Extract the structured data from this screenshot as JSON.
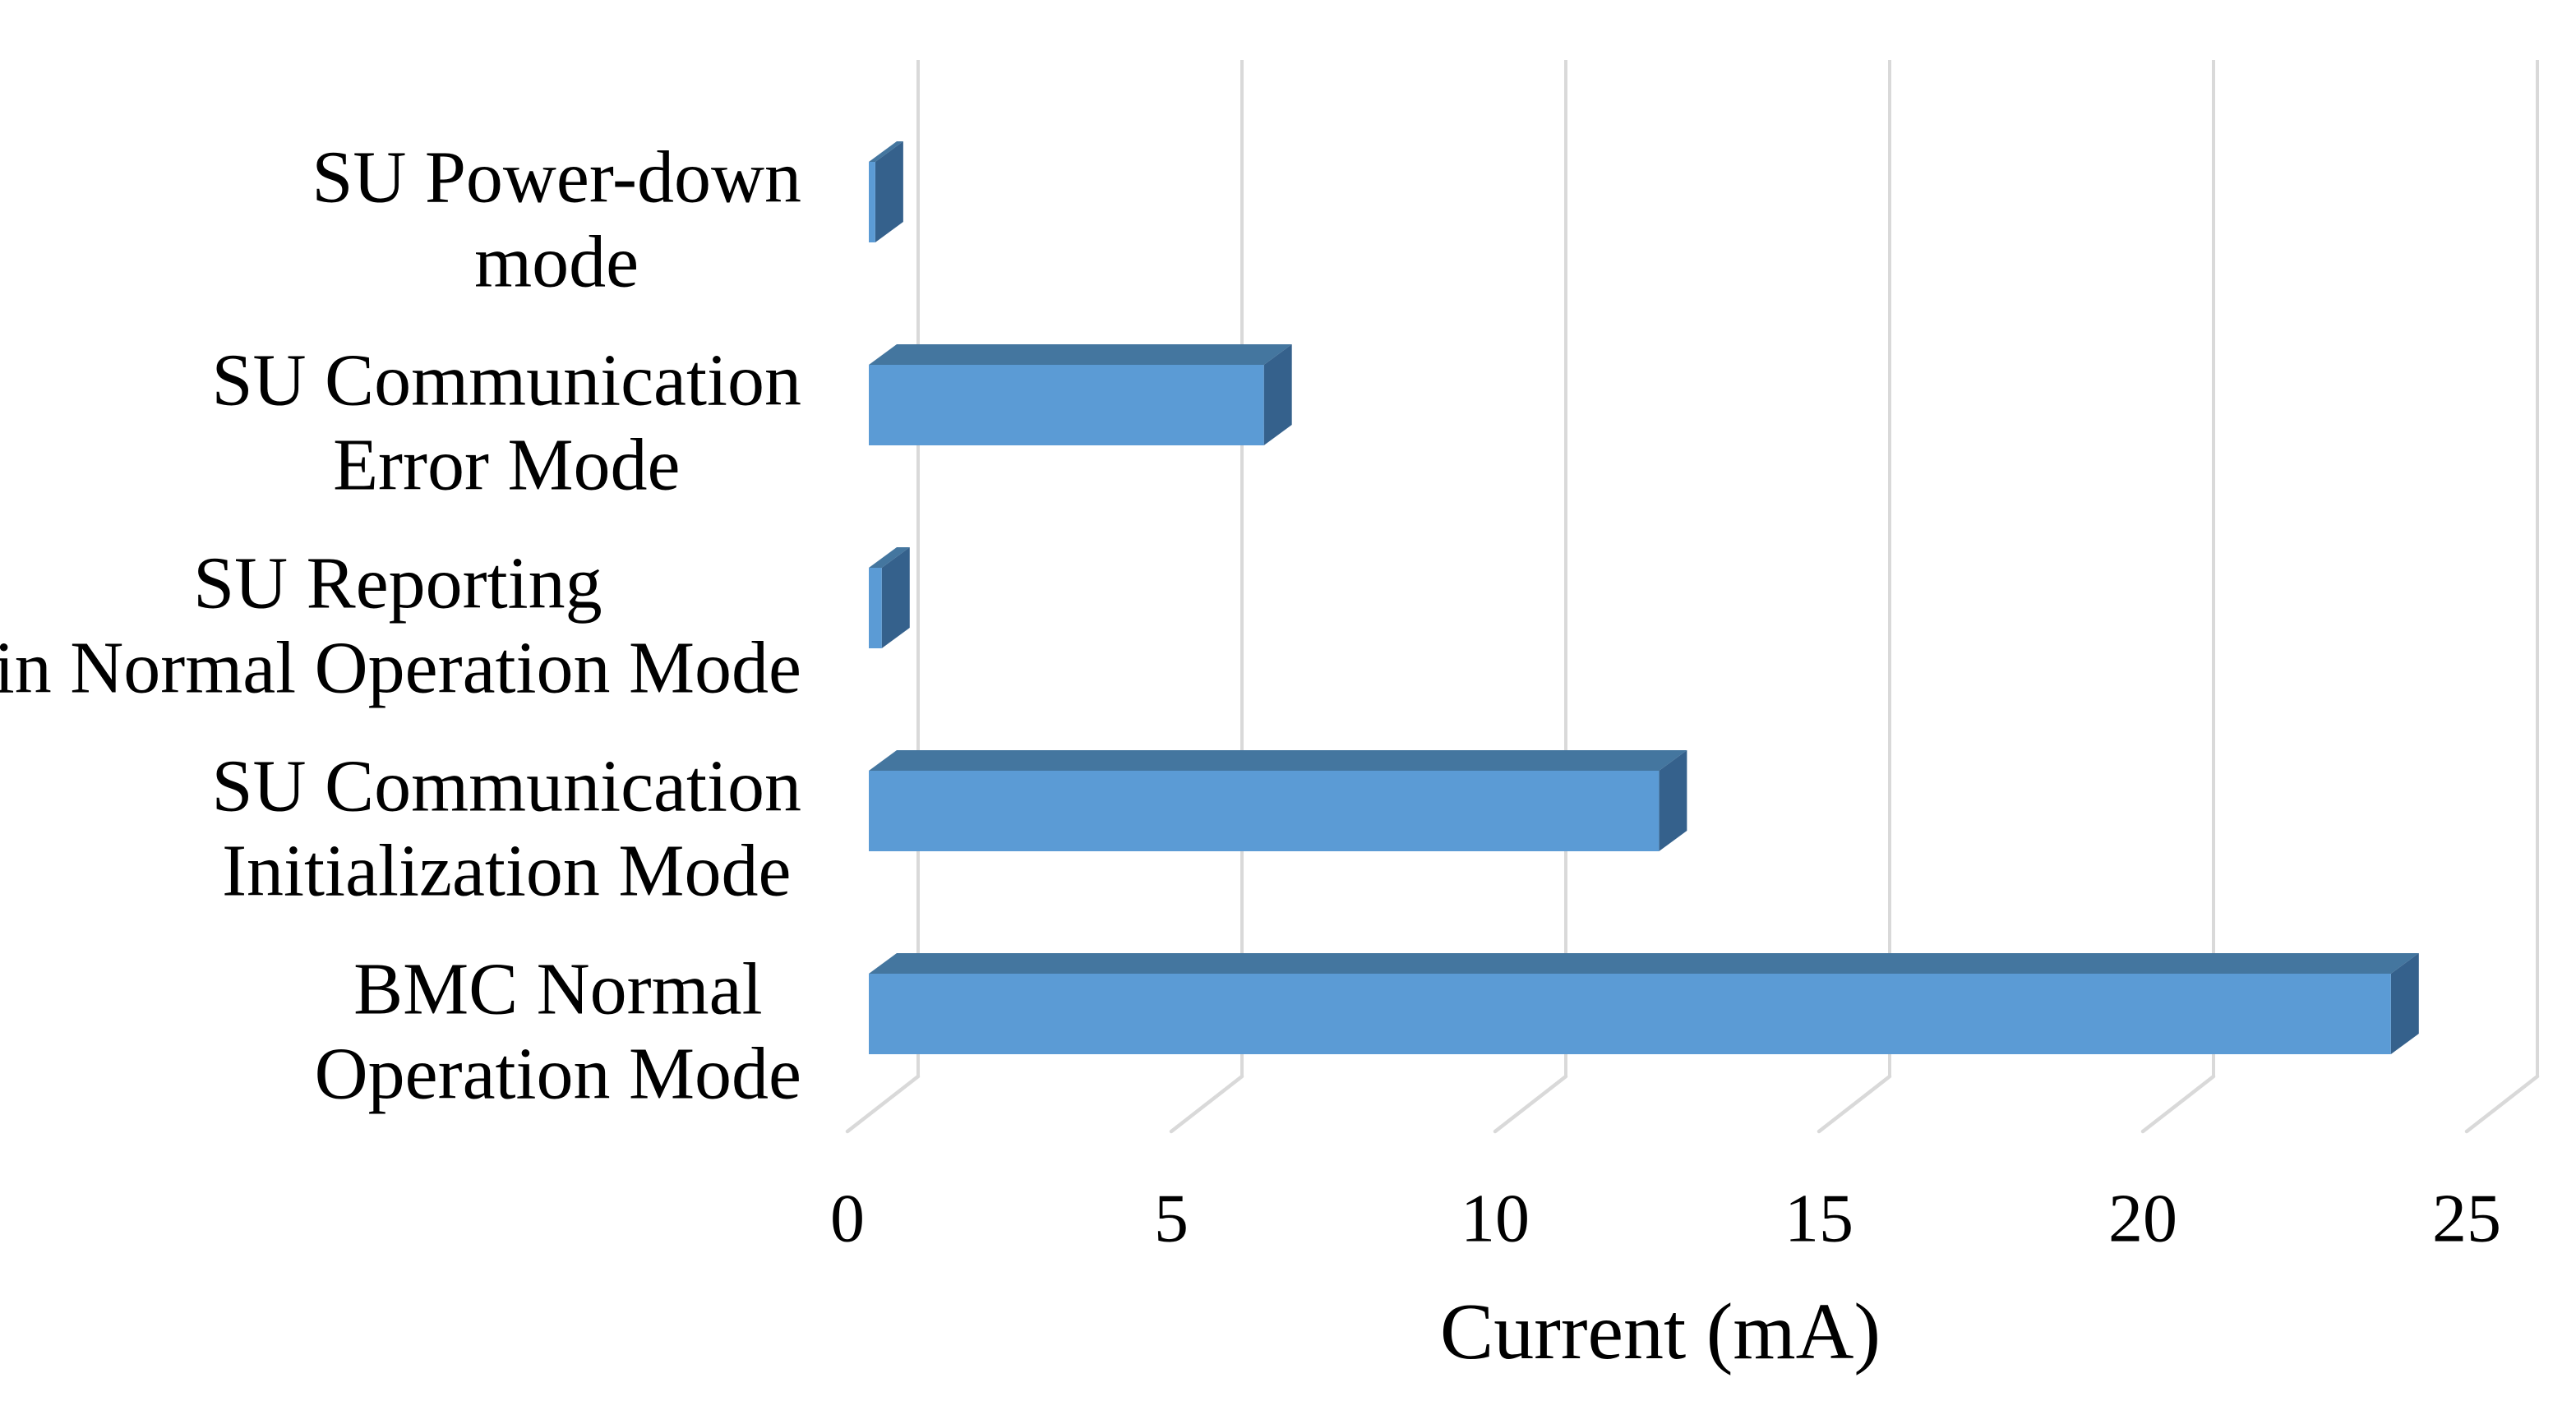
{
  "figure": {
    "background": "#ffffff",
    "kind": "3d-horizontal-bar-chart"
  },
  "chart_data": {
    "type": "bar",
    "orientation": "horizontal",
    "style": "3d",
    "title": "",
    "xlabel": "Current (mA)",
    "ylabel": "",
    "xlim": [
      0,
      25
    ],
    "xticks": [
      0,
      5,
      10,
      15,
      20,
      25
    ],
    "grid": true,
    "legend": false,
    "categories": [
      "SU Power-down mode",
      "SU Communication Error Mode",
      "SU Reporting in Normal Operation Mode",
      "SU Communication Initialization Mode",
      "BMC Normal Operation Mode"
    ],
    "category_lines": [
      [
        "SU Power-down",
        "mode"
      ],
      [
        "SU Communication",
        "Error Mode"
      ],
      [
        "SU Reporting",
        "in Normal Operation Mode"
      ],
      [
        "SU Communication",
        "Initialization Mode"
      ],
      [
        "BMC Normal",
        "Operation Mode"
      ]
    ],
    "values": [
      0.1,
      6.1,
      0.2,
      12.2,
      23.5
    ],
    "colors": {
      "bar_front": "#5B9BD5",
      "bar_top": "#44769F",
      "bar_side": "#35618C",
      "gridline": "#D9D9D9",
      "text": "#000000"
    }
  }
}
